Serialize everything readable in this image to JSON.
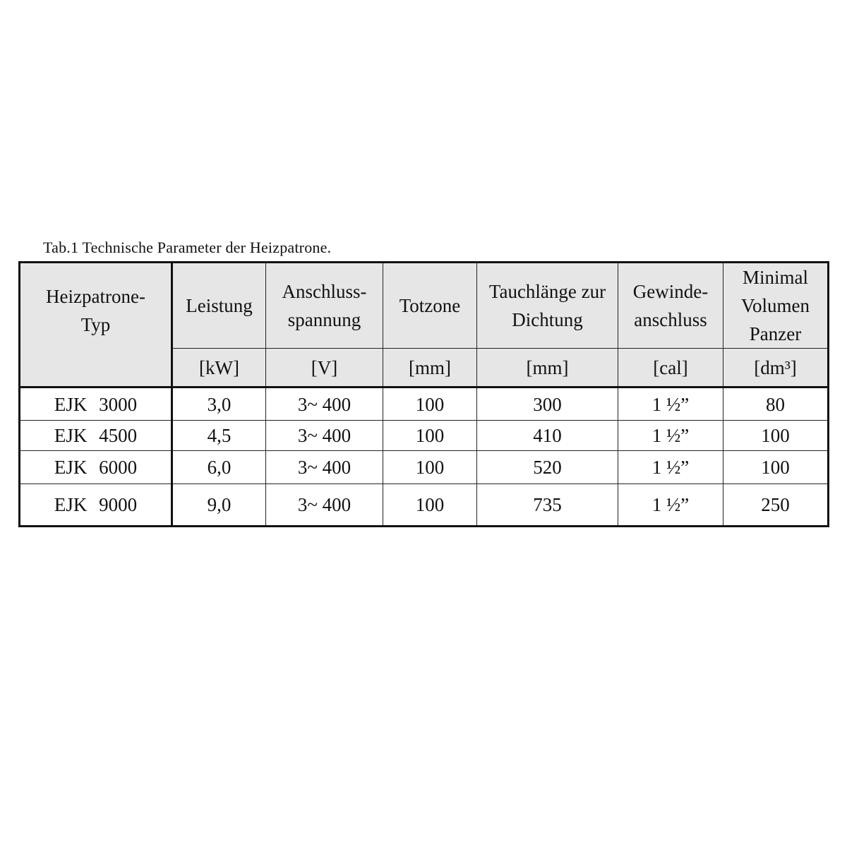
{
  "caption": "Tab.1 Technische Parameter der Heizpatrone.",
  "columns": [
    {
      "label": "Heizpatrone-Typ",
      "unit": ""
    },
    {
      "label": "Leistung",
      "unit": "[kW]"
    },
    {
      "label": "Anschluss-spannung",
      "unit": "[V]"
    },
    {
      "label": "Totzone",
      "unit": "[mm]"
    },
    {
      "label": "Tauchlänge zur Dichtung",
      "unit": "[mm]"
    },
    {
      "label": "Gewinde-anschluss",
      "unit": "[cal]"
    },
    {
      "label": "Minimal Volumen Panzer",
      "unit": "[dm³]"
    }
  ],
  "rows": [
    [
      "EJK 3000",
      "3,0",
      "3~ 400",
      "100",
      "300",
      "1 ½”",
      "80"
    ],
    [
      "EJK 4500",
      "4,5",
      "3~ 400",
      "100",
      "410",
      "1 ½”",
      "100"
    ],
    [
      "EJK 6000",
      "6,0",
      "3~ 400",
      "100",
      "520",
      "1 ½”",
      "100"
    ],
    [
      "EJK 9000",
      "9,0",
      "3~ 400",
      "100",
      "735",
      "1 ½”",
      "250"
    ]
  ]
}
